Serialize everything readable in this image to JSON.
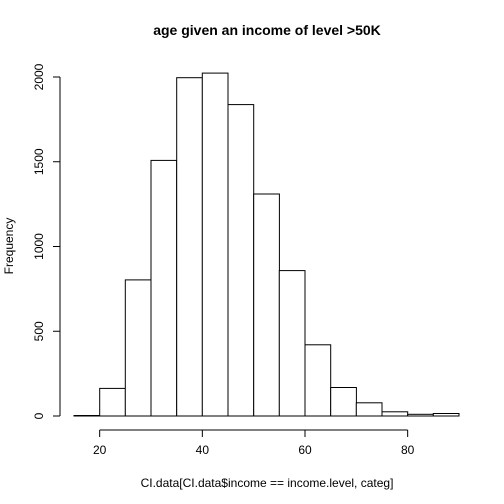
{
  "chart_data": {
    "type": "bar",
    "title": "age given an income of level >50K",
    "xlabel": "CI.data[CI.data$income == income.level, categ]",
    "ylabel": "Frequency",
    "bins": [
      {
        "start": 15,
        "end": 20,
        "count": 3
      },
      {
        "start": 20,
        "end": 25,
        "count": 163
      },
      {
        "start": 25,
        "end": 30,
        "count": 803
      },
      {
        "start": 30,
        "end": 35,
        "count": 1508
      },
      {
        "start": 35,
        "end": 40,
        "count": 1996
      },
      {
        "start": 40,
        "end": 45,
        "count": 2023
      },
      {
        "start": 45,
        "end": 50,
        "count": 1837
      },
      {
        "start": 50,
        "end": 55,
        "count": 1310
      },
      {
        "start": 55,
        "end": 60,
        "count": 858
      },
      {
        "start": 60,
        "end": 65,
        "count": 420
      },
      {
        "start": 65,
        "end": 70,
        "count": 168
      },
      {
        "start": 70,
        "end": 75,
        "count": 78
      },
      {
        "start": 75,
        "end": 80,
        "count": 25
      },
      {
        "start": 80,
        "end": 85,
        "count": 10
      },
      {
        "start": 85,
        "end": 90,
        "count": 15
      }
    ],
    "xlim": [
      15,
      90
    ],
    "ylim": [
      0,
      2100
    ],
    "x_ticks": [
      20,
      40,
      60,
      80
    ],
    "y_ticks": [
      0,
      500,
      1000,
      1500,
      2000
    ],
    "grid": false,
    "legend": "none"
  }
}
